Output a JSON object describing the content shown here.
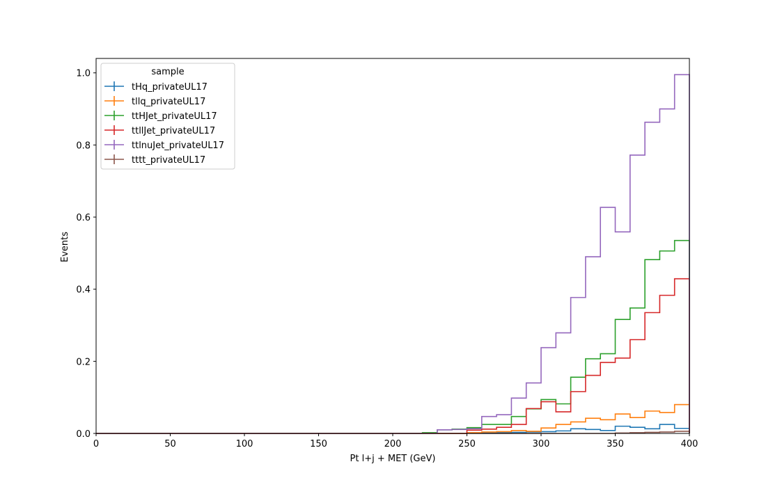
{
  "chart_data": {
    "type": "step",
    "xlabel": "Pt l+j + MET (GeV)",
    "ylabel": "Events",
    "xlim": [
      0,
      400
    ],
    "ylim": [
      0,
      1.04
    ],
    "xticks": [
      "0",
      "50",
      "100",
      "150",
      "200",
      "250",
      "300",
      "350",
      "400"
    ],
    "yticks": [
      "0.0",
      "0.2",
      "0.4",
      "0.6",
      "0.8",
      "1.0"
    ],
    "bin_width": 10,
    "grid": false,
    "legend": {
      "title": "sample",
      "placement": "top-left"
    },
    "series": [
      {
        "name": "tHq_privateUL17",
        "color": "#1f77b4",
        "values": [
          0,
          0,
          0,
          0,
          0,
          0,
          0,
          0,
          0,
          0,
          0,
          0,
          0,
          0,
          0,
          0,
          0,
          0,
          0,
          0,
          0,
          0,
          0,
          0,
          0,
          0.001,
          0.001,
          0.002,
          0.003,
          0.004,
          0.005,
          0.007,
          0.013,
          0.011,
          0.008,
          0.02,
          0.017,
          0.013,
          0.025,
          0.014
        ]
      },
      {
        "name": "tllq_privateUL17",
        "color": "#ff7f0e",
        "values": [
          0,
          0,
          0,
          0,
          0,
          0,
          0,
          0,
          0,
          0,
          0,
          0,
          0,
          0,
          0,
          0,
          0,
          0,
          0,
          0,
          0,
          0,
          0,
          0,
          0,
          0.002,
          0.004,
          0.005,
          0.008,
          0.006,
          0.015,
          0.025,
          0.032,
          0.042,
          0.038,
          0.054,
          0.044,
          0.062,
          0.058,
          0.08
        ]
      },
      {
        "name": "ttHJet_privateUL17",
        "color": "#2ca02c",
        "values": [
          0,
          0,
          0,
          0,
          0,
          0,
          0,
          0,
          0,
          0,
          0,
          0,
          0,
          0,
          0,
          0,
          0,
          0,
          0,
          0,
          0,
          0,
          0.002,
          0.01,
          0.012,
          0.016,
          0.025,
          0.025,
          0.047,
          0.068,
          0.094,
          0.082,
          0.156,
          0.207,
          0.221,
          0.316,
          0.348,
          0.482,
          0.506,
          0.535
        ]
      },
      {
        "name": "ttllJet_privateUL17",
        "color": "#d62728",
        "values": [
          0,
          0,
          0,
          0,
          0,
          0,
          0,
          0,
          0,
          0,
          0,
          0,
          0,
          0,
          0,
          0,
          0,
          0,
          0,
          0,
          0,
          0,
          0,
          0,
          0,
          0.009,
          0.012,
          0.017,
          0.025,
          0.069,
          0.088,
          0.06,
          0.116,
          0.161,
          0.197,
          0.209,
          0.26,
          0.335,
          0.383,
          0.429
        ]
      },
      {
        "name": "ttlnuJet_privateUL17",
        "color": "#9467bd",
        "values": [
          0,
          0,
          0,
          0,
          0,
          0,
          0,
          0,
          0,
          0,
          0,
          0,
          0,
          0,
          0,
          0,
          0,
          0,
          0,
          0,
          0,
          0,
          0,
          0.01,
          0.011,
          0.013,
          0.047,
          0.052,
          0.098,
          0.14,
          0.238,
          0.279,
          0.377,
          0.49,
          0.627,
          0.559,
          0.772,
          0.863,
          0.9,
          0.995
        ]
      },
      {
        "name": "tttt_privateUL17",
        "color": "#8c564b",
        "values": [
          0,
          0,
          0,
          0,
          0,
          0,
          0,
          0,
          0,
          0,
          0,
          0,
          0,
          0,
          0,
          0,
          0,
          0,
          0,
          0,
          0,
          0,
          0,
          0,
          0,
          0,
          0,
          0,
          0,
          0,
          0,
          0,
          0,
          0,
          0,
          0.001,
          0.002,
          0.003,
          0.004,
          0.006
        ]
      }
    ]
  }
}
